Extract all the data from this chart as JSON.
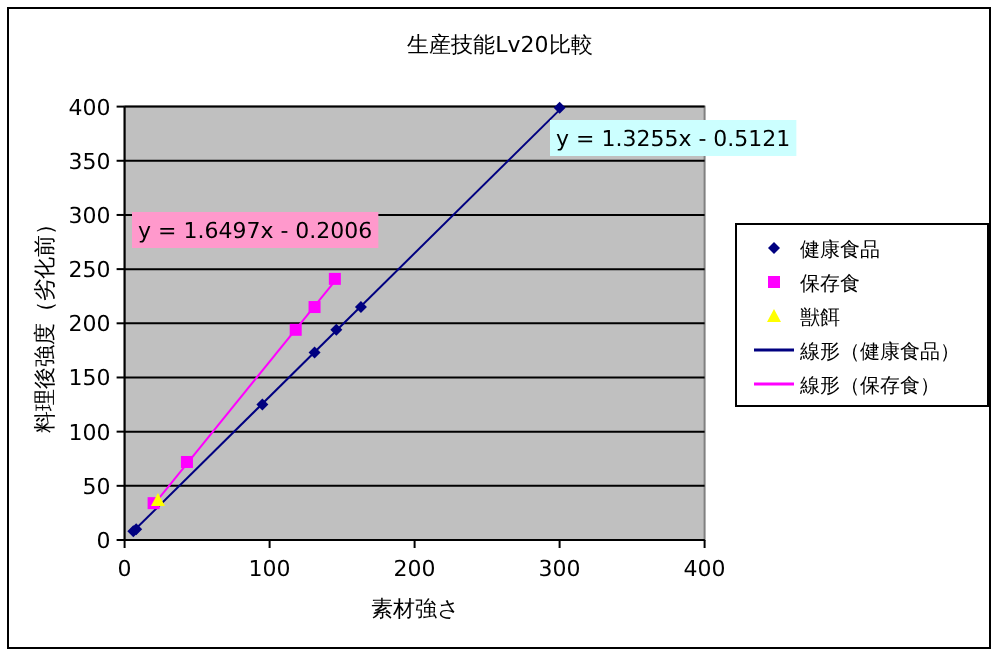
{
  "chart_data": {
    "type": "scatter",
    "title": "生産技能Lv20比較",
    "xlabel": "素材強さ",
    "ylabel": "料理後強度（劣化前）",
    "xlim": [
      0,
      400
    ],
    "xticks": [
      0,
      100,
      200,
      300,
      400
    ],
    "ylim": [
      0,
      400
    ],
    "yticks": [
      0,
      50,
      100,
      150,
      200,
      250,
      300,
      350,
      400
    ],
    "grid": "y",
    "legend": "right",
    "series": [
      {
        "name": "健康食品",
        "type": "scatter",
        "marker": "diamond",
        "color": "#000080",
        "x": [
          6,
          8,
          95,
          131,
          146,
          163,
          300
        ],
        "values": [
          8,
          10,
          125,
          173,
          194,
          215,
          399
        ]
      },
      {
        "name": "保存食",
        "type": "scatter",
        "marker": "square",
        "color": "#ff00ff",
        "x": [
          20,
          43,
          118,
          131,
          145
        ],
        "values": [
          34,
          72,
          194,
          215,
          241
        ]
      },
      {
        "name": "獣餌",
        "type": "scatter",
        "marker": "triangle",
        "color": "#ffff00",
        "x": [
          23
        ],
        "values": [
          37
        ]
      },
      {
        "name": "線形（健康食品）",
        "type": "line",
        "marker": "none",
        "color": "#000080",
        "x": [
          6,
          300
        ],
        "values": [
          8,
          397
        ]
      },
      {
        "name": "線形（保存食）",
        "type": "line",
        "marker": "none",
        "color": "#ff00ff",
        "x": [
          21,
          145
        ],
        "values": [
          34,
          239
        ]
      }
    ],
    "annotations": [
      "y = 1.3255x - 0.5121",
      "y = 1.6497x - 0.2006"
    ]
  }
}
